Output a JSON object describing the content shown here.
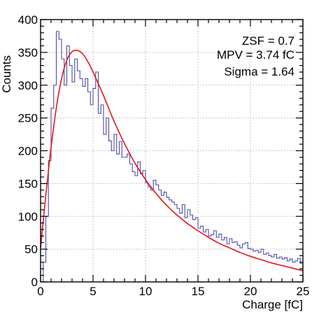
{
  "chart_data": {
    "type": "line",
    "title": "",
    "xlabel": "Charge [fC]",
    "ylabel": "Counts",
    "xlim": [
      0,
      25
    ],
    "ylim": [
      0,
      400
    ],
    "grid": true,
    "x_ticks": [
      0,
      5,
      10,
      15,
      20,
      25
    ],
    "y_ticks": [
      0,
      50,
      100,
      150,
      200,
      250,
      300,
      350,
      400
    ],
    "colors": {
      "histogram": "#4b4ba8",
      "fit": "#e8141b"
    },
    "annotations": [
      "ZSF = 0.7",
      "MPV = 3.74 fC",
      "Sigma = 1.64"
    ],
    "annotation_placement": "top-right",
    "series": [
      {
        "type": "step",
        "bin_width": 0.25,
        "bin_start": 0,
        "values": [
          0,
          30,
          100,
          185,
          265,
          300,
          382,
          370,
          340,
          300,
          360,
          330,
          305,
          340,
          322,
          310,
          298,
          310,
          290,
          270,
          295,
          320,
          257,
          270,
          225,
          250,
          215,
          200,
          225,
          195,
          214,
          190,
          190,
          195,
          180,
          168,
          162,
          183,
          165,
          170,
          151,
          145,
          140,
          155,
          148,
          140,
          132,
          137,
          129,
          125,
          122,
          118,
          112,
          105,
          118,
          98,
          110,
          102,
          95,
          98,
          82,
          85,
          76,
          80,
          70,
          72,
          78,
          68,
          73,
          64,
          68,
          58,
          66,
          60,
          61,
          56,
          52,
          58,
          60,
          51,
          50,
          47,
          48,
          45,
          50,
          42,
          44,
          40,
          38,
          42,
          36,
          38,
          35,
          37,
          32,
          35,
          30,
          32,
          36,
          28
        ]
      },
      {
        "type": "fit",
        "name": "",
        "points": [
          [
            0,
            52
          ],
          [
            0.5,
            132
          ],
          [
            1,
            205
          ],
          [
            1.5,
            265
          ],
          [
            2,
            310
          ],
          [
            2.5,
            338
          ],
          [
            3,
            351
          ],
          [
            3.5,
            353
          ],
          [
            4,
            348
          ],
          [
            4.5,
            336
          ],
          [
            5,
            320
          ],
          [
            6,
            284
          ],
          [
            7,
            245
          ],
          [
            8,
            211
          ],
          [
            9,
            181
          ],
          [
            10,
            156
          ],
          [
            11,
            135
          ],
          [
            12,
            117
          ],
          [
            13,
            102
          ],
          [
            14,
            89
          ],
          [
            15,
            78
          ],
          [
            16,
            68
          ],
          [
            17,
            59
          ],
          [
            18,
            52
          ],
          [
            19,
            45
          ],
          [
            20,
            39
          ],
          [
            21,
            34
          ],
          [
            22,
            29
          ],
          [
            23,
            25
          ],
          [
            24,
            21
          ],
          [
            25,
            17
          ]
        ]
      }
    ]
  }
}
